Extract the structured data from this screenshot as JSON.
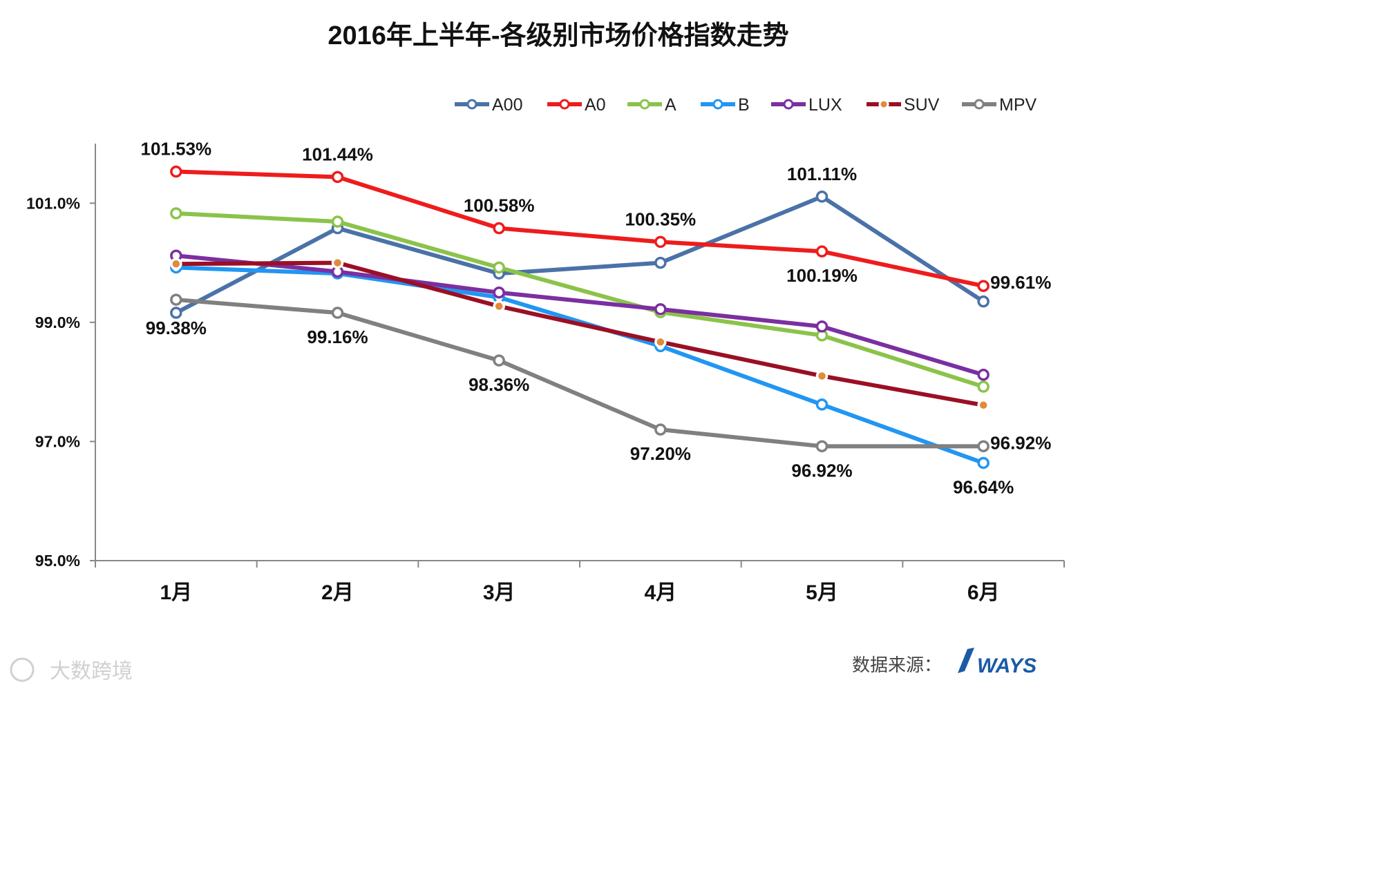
{
  "chart_data": {
    "type": "line",
    "title": "2016年上半年-各级别市场价格指数走势",
    "categories": [
      "1月",
      "2月",
      "3月",
      "4月",
      "5月",
      "6月"
    ],
    "ylim": [
      95.0,
      102.0
    ],
    "yticks": [
      "101.0%",
      "99.0%",
      "97.0%",
      "95.0%"
    ],
    "ytick_values": [
      101.0,
      99.0,
      97.0,
      95.0
    ],
    "legend_position": "top-right",
    "grid": false,
    "series": [
      {
        "name": "A00",
        "color": "#4a72a8",
        "values": [
          99.16,
          100.58,
          99.82,
          100.0,
          101.11,
          99.35
        ]
      },
      {
        "name": "A0",
        "color": "#ee1c1c",
        "values": [
          101.53,
          101.44,
          100.58,
          100.35,
          100.19,
          99.61
        ]
      },
      {
        "name": "A",
        "color": "#8bc34a",
        "values": [
          100.83,
          100.69,
          99.92,
          99.17,
          98.78,
          97.92
        ]
      },
      {
        "name": "B",
        "color": "#2196f3",
        "values": [
          99.92,
          99.82,
          99.42,
          98.6,
          97.62,
          96.64
        ]
      },
      {
        "name": "LUX",
        "color": "#7b2fa0",
        "values": [
          100.12,
          99.85,
          99.5,
          99.22,
          98.93,
          98.12
        ]
      },
      {
        "name": "SUV",
        "color": "#9b0f24",
        "values": [
          99.98,
          100.0,
          99.27,
          98.67,
          98.1,
          97.61
        ]
      },
      {
        "name": "MPV",
        "color": "#808080",
        "values": [
          99.38,
          99.16,
          98.36,
          97.2,
          96.92,
          96.92
        ]
      }
    ],
    "marker_fill_colors": {
      "SUV": "#e08a3c"
    },
    "data_labels": [
      {
        "text": "101.53%",
        "series": "A0",
        "index": 0,
        "pos": "above"
      },
      {
        "text": "101.44%",
        "series": "A0",
        "index": 1,
        "pos": "above"
      },
      {
        "text": "100.58%",
        "series": "A0",
        "index": 2,
        "pos": "above"
      },
      {
        "text": "100.35%",
        "series": "A0",
        "index": 3,
        "pos": "above"
      },
      {
        "text": "100.19%",
        "series": "A0",
        "index": 4,
        "pos": "below"
      },
      {
        "text": "99.61%",
        "series": "A0",
        "index": 5,
        "pos": "right"
      },
      {
        "text": "101.11%",
        "series": "A00",
        "index": 4,
        "pos": "above"
      },
      {
        "text": "99.38%",
        "series": "MPV",
        "index": 0,
        "pos": "below-far"
      },
      {
        "text": "99.16%",
        "series": "MPV",
        "index": 1,
        "pos": "below"
      },
      {
        "text": "98.36%",
        "series": "MPV",
        "index": 2,
        "pos": "below"
      },
      {
        "text": "97.20%",
        "series": "MPV",
        "index": 3,
        "pos": "below"
      },
      {
        "text": "96.92%",
        "series": "MPV",
        "index": 4,
        "pos": "below"
      },
      {
        "text": "96.92%",
        "series": "MPV",
        "index": 5,
        "pos": "right"
      },
      {
        "text": "96.64%",
        "series": "B",
        "index": 5,
        "pos": "below"
      }
    ]
  },
  "source": {
    "label": "数据来源：",
    "logo": "WAYS"
  },
  "watermark": {
    "text": "大数跨境"
  }
}
